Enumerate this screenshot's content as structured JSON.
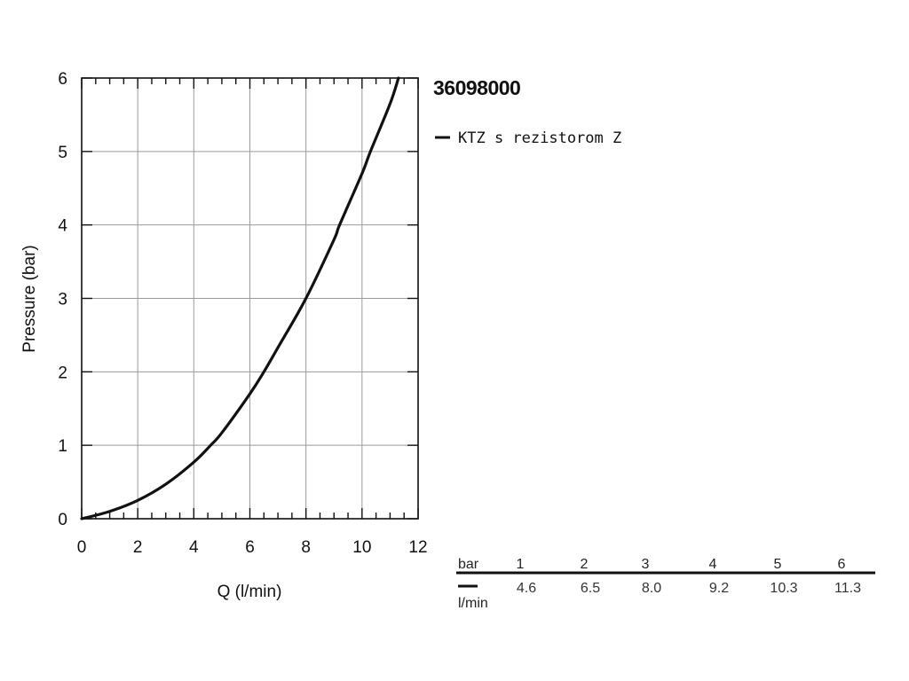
{
  "chart_data": {
    "type": "line",
    "title": "36098000",
    "xlabel": "Q (l/min)",
    "ylabel": "Pressure (bar)",
    "xlim": [
      0,
      12
    ],
    "ylim": [
      0,
      6
    ],
    "x_ticks": [
      "0",
      "2",
      "4",
      "6",
      "8",
      "10",
      "12"
    ],
    "y_ticks": [
      "0",
      "1",
      "2",
      "3",
      "4",
      "5",
      "6"
    ],
    "grid": true,
    "legend_position": "top-right",
    "series": [
      {
        "name": "KTZ s rezistorom Z",
        "color": "#111111",
        "x": [
          0,
          1,
          2,
          3,
          4,
          4.6,
          5,
          6,
          6.5,
          7,
          8,
          9,
          9.2,
          10,
          10.3,
          11,
          11.3
        ],
        "y": [
          0,
          0.1,
          0.25,
          0.47,
          0.77,
          1,
          1.17,
          1.7,
          2,
          2.33,
          3,
          3.8,
          4,
          4.7,
          5,
          5.65,
          6
        ]
      }
    ]
  },
  "table": {
    "row_header_top": "bar",
    "row_header_bottom": "l/min",
    "columns": [
      {
        "bar": "1",
        "flow": "4.6"
      },
      {
        "bar": "2",
        "flow": "6.5"
      },
      {
        "bar": "3",
        "flow": "8.0"
      },
      {
        "bar": "4",
        "flow": "9.2"
      },
      {
        "bar": "5",
        "flow": "10.3"
      },
      {
        "bar": "6",
        "flow": "11.3"
      }
    ]
  }
}
